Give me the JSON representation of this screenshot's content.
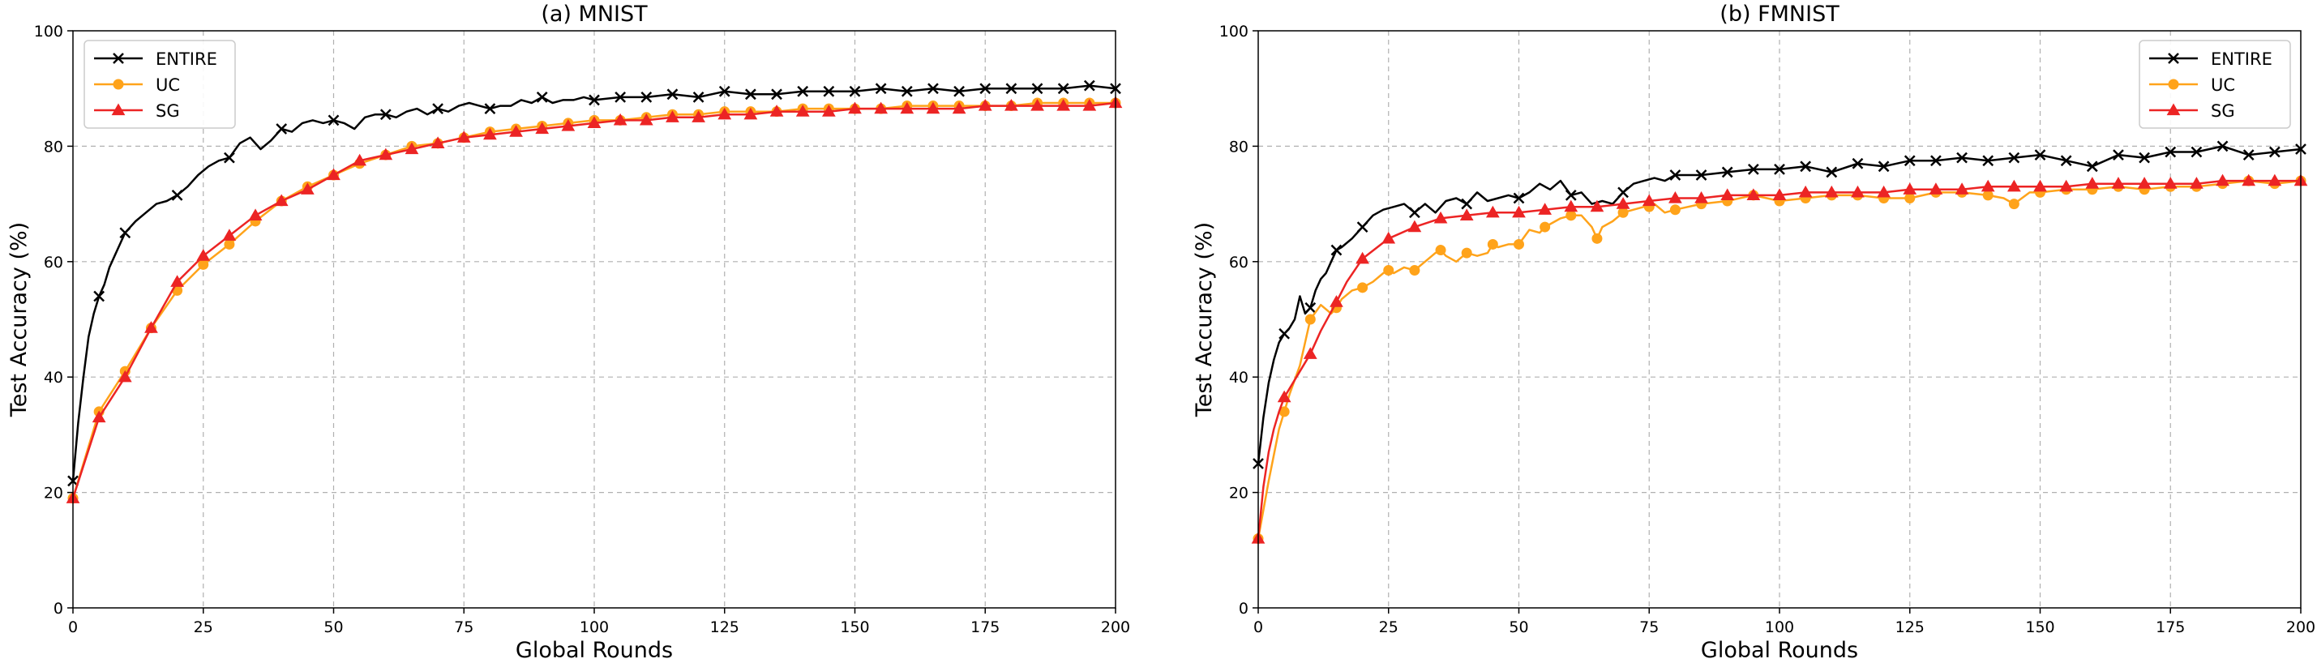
{
  "chart_data": [
    {
      "type": "line",
      "title": "(a) MNIST",
      "xlabel": "Global Rounds",
      "ylabel": "Test Accuracy (%)",
      "xlim": [
        0,
        200
      ],
      "ylim": [
        0,
        100
      ],
      "xticks": [
        0,
        25,
        50,
        75,
        100,
        125,
        150,
        175,
        200
      ],
      "yticks": [
        0,
        20,
        40,
        60,
        80,
        100
      ],
      "xtick_labels": [
        "0",
        "25",
        "50",
        "75",
        "100",
        "125",
        "150",
        "175",
        "200"
      ],
      "ytick_labels": [
        "0",
        "20",
        "40",
        "60",
        "80",
        "100"
      ],
      "grid": true,
      "legend_position": "top-left",
      "series": [
        {
          "name": "ENTIRE",
          "color": "#000000",
          "marker": "x",
          "marker_every": 5,
          "x": [
            0,
            1,
            2,
            3,
            4,
            5,
            6,
            7,
            8,
            9,
            10,
            12,
            14,
            16,
            18,
            20,
            22,
            24,
            26,
            28,
            30,
            32,
            34,
            36,
            38,
            40,
            42,
            44,
            46,
            48,
            50,
            52,
            54,
            56,
            58,
            60,
            62,
            64,
            66,
            68,
            70,
            72,
            74,
            76,
            78,
            80,
            82,
            84,
            86,
            88,
            90,
            92,
            94,
            96,
            98,
            100,
            105,
            110,
            115,
            120,
            125,
            130,
            135,
            140,
            145,
            150,
            155,
            160,
            165,
            170,
            175,
            180,
            185,
            190,
            195,
            200
          ],
          "y": [
            22,
            32,
            40,
            47,
            51,
            54,
            56,
            59,
            61,
            63,
            65,
            67,
            68.5,
            70,
            70.5,
            71.5,
            73,
            75,
            76.5,
            77.5,
            78,
            80.5,
            81.5,
            79.5,
            81,
            83,
            82.5,
            84,
            84.5,
            84,
            84.5,
            84,
            83,
            85,
            85.5,
            85.5,
            85,
            86,
            86.5,
            85.5,
            86.5,
            86,
            87,
            87.5,
            87,
            86.5,
            87,
            87,
            88,
            87.5,
            88.5,
            87.5,
            88,
            88,
            88.5,
            88,
            88.5,
            88.5,
            89,
            88.5,
            89.5,
            89,
            89,
            89.5,
            89.5,
            89.5,
            90,
            89.5,
            90,
            89.5,
            90,
            90,
            90,
            90,
            90.5,
            90
          ]
        },
        {
          "name": "UC",
          "color": "#ffa31a",
          "marker": "o",
          "marker_every": 5,
          "x": [
            0,
            5,
            10,
            15,
            20,
            25,
            30,
            35,
            40,
            45,
            50,
            55,
            60,
            65,
            70,
            75,
            80,
            85,
            90,
            95,
            100,
            105,
            110,
            115,
            120,
            125,
            130,
            135,
            140,
            145,
            150,
            155,
            160,
            165,
            170,
            175,
            180,
            185,
            190,
            195,
            200
          ],
          "y": [
            19,
            34,
            41,
            48.5,
            55,
            59.5,
            63,
            67,
            70.5,
            73,
            75,
            77,
            78.5,
            80,
            80.5,
            81.5,
            82.5,
            83,
            83.5,
            84,
            84.5,
            84.5,
            85,
            85.5,
            85.5,
            86,
            86,
            86,
            86.5,
            86.5,
            86.5,
            86.5,
            87,
            87,
            87,
            87,
            87,
            87.5,
            87.5,
            87.5,
            87.5
          ]
        },
        {
          "name": "SG",
          "color": "#ec2424",
          "marker": "^",
          "marker_every": 5,
          "x": [
            0,
            5,
            10,
            15,
            20,
            25,
            30,
            35,
            40,
            45,
            50,
            55,
            60,
            65,
            70,
            75,
            80,
            85,
            90,
            95,
            100,
            105,
            110,
            115,
            120,
            125,
            130,
            135,
            140,
            145,
            150,
            155,
            160,
            165,
            170,
            175,
            180,
            185,
            190,
            195,
            200
          ],
          "y": [
            19,
            33,
            40,
            48.5,
            56.5,
            61,
            64.5,
            68,
            70.5,
            72.5,
            75,
            77.5,
            78.5,
            79.5,
            80.5,
            81.5,
            82,
            82.5,
            83,
            83.5,
            84,
            84.5,
            84.5,
            85,
            85,
            85.5,
            85.5,
            86,
            86,
            86,
            86.5,
            86.5,
            86.5,
            86.5,
            86.5,
            87,
            87,
            87,
            87,
            87,
            87.5
          ]
        }
      ]
    },
    {
      "type": "line",
      "title": "(b) FMNIST",
      "xlabel": "Global Rounds",
      "ylabel": "Test Accuracy (%)",
      "xlim": [
        0,
        200
      ],
      "ylim": [
        0,
        100
      ],
      "xticks": [
        0,
        25,
        50,
        75,
        100,
        125,
        150,
        175,
        200
      ],
      "yticks": [
        0,
        20,
        40,
        60,
        80,
        100
      ],
      "xtick_labels": [
        "0",
        "25",
        "50",
        "75",
        "100",
        "125",
        "150",
        "175",
        "200"
      ],
      "ytick_labels": [
        "0",
        "20",
        "40",
        "60",
        "80",
        "100"
      ],
      "grid": true,
      "legend_position": "top-right",
      "series": [
        {
          "name": "ENTIRE",
          "color": "#000000",
          "marker": "x",
          "marker_every": 5,
          "x": [
            0,
            1,
            2,
            3,
            4,
            5,
            6,
            7,
            8,
            9,
            10,
            11,
            12,
            13,
            14,
            15,
            16,
            18,
            20,
            22,
            24,
            26,
            28,
            30,
            32,
            34,
            36,
            38,
            40,
            42,
            44,
            46,
            48,
            50,
            52,
            54,
            56,
            58,
            60,
            62,
            64,
            66,
            68,
            70,
            72,
            74,
            76,
            78,
            80,
            85,
            90,
            95,
            100,
            105,
            110,
            115,
            120,
            125,
            130,
            135,
            140,
            145,
            150,
            155,
            160,
            165,
            170,
            175,
            180,
            185,
            190,
            195,
            200
          ],
          "y": [
            25,
            33,
            39,
            43,
            46,
            47.5,
            48.5,
            50,
            54,
            51,
            52,
            55,
            57,
            58,
            60,
            62,
            62.5,
            64,
            66,
            68,
            69,
            69.5,
            70,
            68.5,
            70,
            68.5,
            70.5,
            71,
            70,
            72,
            70.5,
            71,
            71.5,
            71,
            72,
            73.5,
            72.5,
            74,
            71.5,
            72,
            70,
            70.5,
            70,
            72,
            73.5,
            74,
            74.5,
            74,
            75,
            75,
            75.5,
            76,
            76,
            76.5,
            75.5,
            77,
            76.5,
            77.5,
            77.5,
            78,
            77.5,
            78,
            78.5,
            77.5,
            76.5,
            78.5,
            78,
            79,
            79,
            80,
            78.5,
            79,
            79.5
          ]
        },
        {
          "name": "UC",
          "color": "#ffa31a",
          "marker": "o",
          "marker_every": 5,
          "x": [
            0,
            2,
            4,
            5,
            6,
            8,
            10,
            12,
            14,
            15,
            16,
            18,
            20,
            22,
            24,
            25,
            26,
            28,
            30,
            32,
            34,
            35,
            36,
            38,
            40,
            42,
            44,
            45,
            46,
            48,
            50,
            52,
            54,
            55,
            56,
            58,
            60,
            62,
            64,
            65,
            66,
            68,
            70,
            72,
            74,
            75,
            76,
            78,
            80,
            85,
            90,
            95,
            100,
            105,
            110,
            115,
            120,
            125,
            130,
            135,
            140,
            143,
            145,
            148,
            150,
            155,
            160,
            165,
            170,
            175,
            180,
            185,
            190,
            195,
            200
          ],
          "y": [
            12,
            22,
            31,
            34,
            37,
            42,
            50,
            52.5,
            51,
            52,
            53.5,
            55,
            55.5,
            56.5,
            58,
            58.5,
            58,
            59,
            58.5,
            60,
            61.5,
            62,
            61,
            60,
            61.5,
            61,
            61.5,
            63,
            62.5,
            63,
            63,
            65.5,
            65,
            66,
            66.5,
            67.5,
            68,
            68,
            66,
            64,
            66,
            67,
            68.5,
            69,
            69.5,
            69.5,
            70,
            68.5,
            69,
            70,
            70.5,
            71.5,
            70.5,
            71,
            71.5,
            71.5,
            71,
            71,
            72,
            72,
            71.5,
            71,
            70,
            72,
            72,
            72.5,
            72.5,
            73,
            72.5,
            73,
            73,
            73.5,
            74,
            73.5,
            74
          ]
        },
        {
          "name": "SG",
          "color": "#ec2424",
          "marker": "^",
          "marker_every": 5,
          "x": [
            0,
            1,
            2,
            3,
            4,
            5,
            7,
            10,
            12,
            15,
            17,
            20,
            25,
            30,
            35,
            40,
            45,
            50,
            55,
            60,
            65,
            70,
            75,
            80,
            85,
            90,
            95,
            100,
            105,
            110,
            115,
            120,
            125,
            130,
            135,
            140,
            145,
            150,
            155,
            160,
            165,
            170,
            175,
            180,
            185,
            190,
            195,
            200
          ],
          "y": [
            12,
            21,
            27,
            31,
            34,
            36.5,
            39.5,
            44,
            48,
            53,
            56.5,
            60.5,
            64,
            66,
            67.5,
            68,
            68.5,
            68.5,
            69,
            69.5,
            69.5,
            70,
            70.5,
            71,
            71,
            71.5,
            71.5,
            71.5,
            72,
            72,
            72,
            72,
            72.5,
            72.5,
            72.5,
            73,
            73,
            73,
            73,
            73.5,
            73.5,
            73.5,
            73.5,
            73.5,
            74,
            74,
            74,
            74
          ]
        }
      ]
    }
  ]
}
